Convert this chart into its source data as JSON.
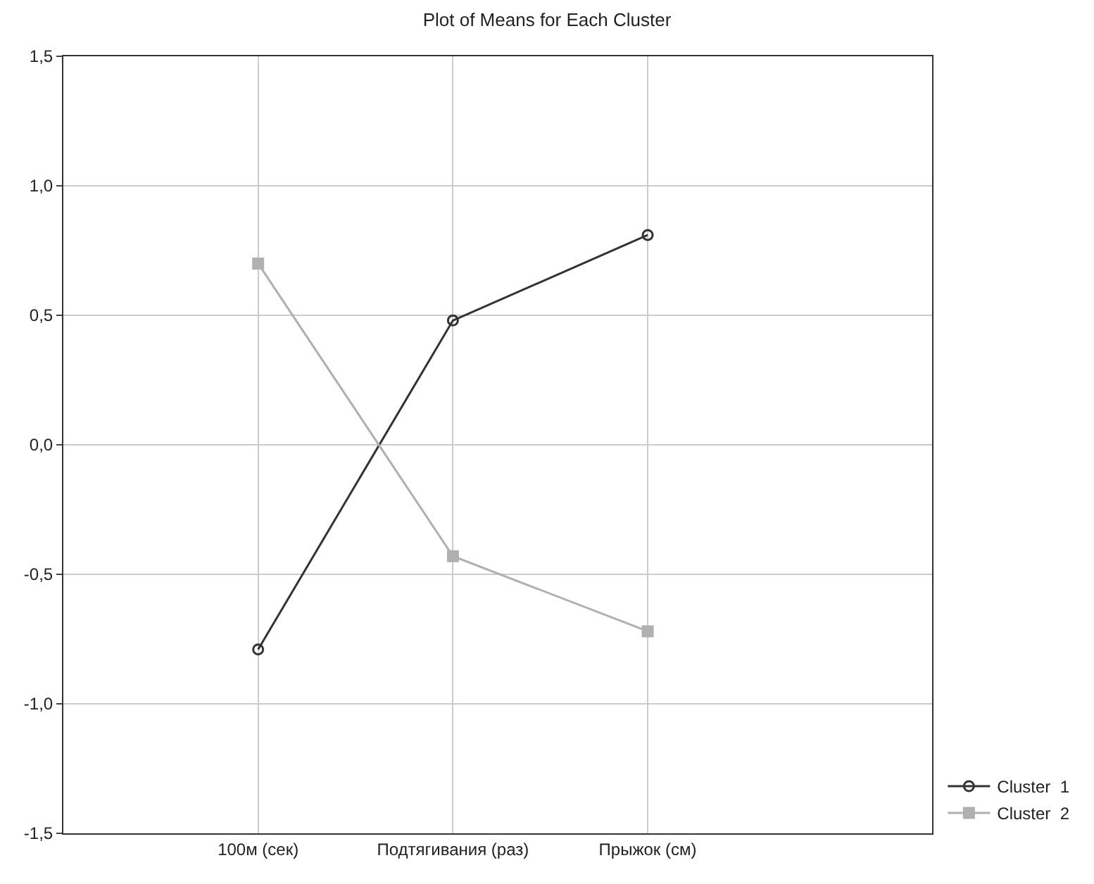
{
  "chart_data": {
    "type": "line",
    "title": "Plot of Means for Each Cluster",
    "categories": [
      "100м (сек)",
      "Подтягивания (раз)",
      "Прыжок (см)"
    ],
    "series": [
      {
        "name": "Cluster  1",
        "color": "#333333",
        "marker": "circle",
        "values": [
          -0.79,
          0.48,
          0.81
        ]
      },
      {
        "name": "Cluster  2",
        "color": "#b0b0b0",
        "marker": "square",
        "values": [
          0.7,
          -0.43,
          -0.72
        ]
      }
    ],
    "ylim": [
      -1.5,
      1.5
    ],
    "yticks": [
      {
        "value": -1.5,
        "label": "-1,5"
      },
      {
        "value": -1,
        "label": "-1,0"
      },
      {
        "value": -0.5,
        "label": "-0,5"
      },
      {
        "value": 0,
        "label": "0,0"
      },
      {
        "value": 0.5,
        "label": "0,5"
      },
      {
        "value": 1,
        "label": "1,0"
      },
      {
        "value": 1.5,
        "label": "1,5"
      }
    ],
    "grid": true,
    "legend": "bottom right",
    "line_style": "solid"
  }
}
